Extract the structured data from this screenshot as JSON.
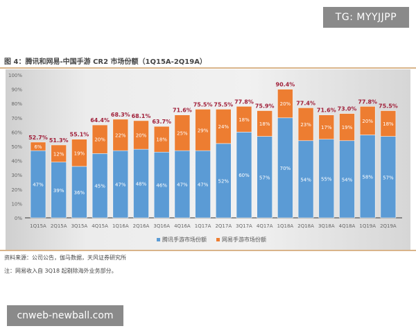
{
  "watermark_top": "TG: MYYJJPP",
  "watermark_bottom": "cnweb-newball.com",
  "source": "资料来源：公司公告，伽马数据，天风证券研究所",
  "note": "注：网易收入自 3Q18 起剔除海外业务部分。",
  "chart_data": {
    "type": "bar",
    "stacked": true,
    "title": "图 4：腾讯和网易-中国手游 CR2 市场份额（1Q15A-2Q19A）",
    "xlabel": "",
    "ylabel": "",
    "ylim": [
      0,
      100
    ],
    "yticks": [
      "0%",
      "10%",
      "20%",
      "30%",
      "40%",
      "50%",
      "60%",
      "70%",
      "80%",
      "90%",
      "100%"
    ],
    "grid": false,
    "legend_position": "bottom",
    "categories": [
      "1Q15A",
      "2Q15A",
      "3Q15A",
      "4Q15A",
      "1Q16A",
      "2Q16A",
      "3Q16A",
      "4Q16A",
      "1Q17A",
      "2Q17A",
      "3Q17A",
      "4Q17A",
      "1Q18A",
      "2Q18A",
      "3Q18A",
      "4Q18A",
      "1Q19A",
      "2Q19A"
    ],
    "series": [
      {
        "name": "腾讯手游市场份额",
        "color": "#5b9bd5",
        "values": [
          47,
          39,
          36,
          45,
          47,
          48,
          46,
          47,
          47,
          52,
          60,
          57,
          70,
          54,
          55,
          54,
          58,
          57
        ]
      },
      {
        "name": "网易手游市场份额",
        "color": "#ed7d31",
        "values": [
          6,
          12,
          19,
          20,
          22,
          20,
          18,
          25,
          29,
          24,
          18,
          18,
          20,
          23,
          17,
          19,
          20,
          18
        ]
      }
    ],
    "totals": [
      "52.7%",
      "51.3%",
      "55.1%",
      "64.4%",
      "68.3%",
      "68.1%",
      "63.7%",
      "71.6%",
      "75.5%",
      "75.5%",
      "77.8%",
      "75.9%",
      "90.4%",
      "77.4%",
      "71.6%",
      "73.0%",
      "77.8%",
      "75.5%"
    ],
    "total_label_color": "#a0203a"
  }
}
